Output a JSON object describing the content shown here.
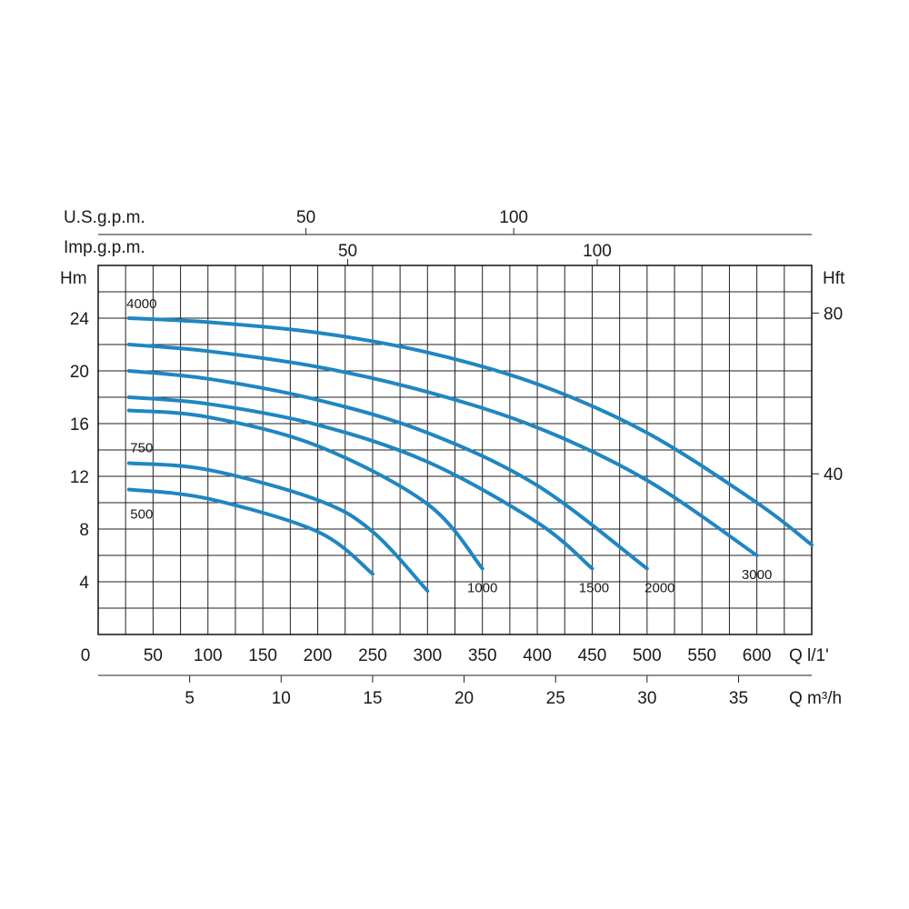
{
  "chart_data": {
    "type": "line",
    "curve_color": "#1f86c2",
    "x_axis": {
      "label": "Q l/1'",
      "ticks": [
        0,
        50,
        100,
        150,
        200,
        250,
        300,
        350,
        400,
        450,
        500,
        550,
        600
      ],
      "range": [
        0,
        650
      ]
    },
    "y_axis": {
      "label": "Hm",
      "ticks": [
        4,
        8,
        12,
        16,
        20,
        24
      ],
      "range": [
        0,
        28
      ]
    },
    "x_axis_m3h": {
      "label": "Q m³/h",
      "ticks": [
        5,
        10,
        15,
        20,
        25,
        30,
        35
      ]
    },
    "y_axis_ft": {
      "label": "Hft",
      "ticks": [
        40,
        80
      ]
    },
    "top_axis_us": {
      "label": "U.S.g.p.m.",
      "ticks": [
        50,
        100
      ]
    },
    "top_axis_imp": {
      "label": "Imp.g.p.m.",
      "ticks": [
        50,
        100
      ]
    },
    "series": [
      {
        "name": "4000",
        "label_anchor": "start",
        "x": [
          28,
          100,
          200,
          300,
          400,
          500,
          600,
          650
        ],
        "y": [
          24,
          23.7,
          22.9,
          21.4,
          19.0,
          15.3,
          10.0,
          6.8
        ]
      },
      {
        "name": "3000",
        "label_anchor": "end",
        "x": [
          28,
          100,
          200,
          300,
          400,
          500,
          600
        ],
        "y": [
          22,
          21.5,
          20.3,
          18.4,
          15.7,
          11.7,
          6.0
        ]
      },
      {
        "name": "2000",
        "label_anchor": "end",
        "x": [
          28,
          100,
          200,
          300,
          400,
          500
        ],
        "y": [
          20,
          19.4,
          17.8,
          15.3,
          11.3,
          5.0
        ]
      },
      {
        "name": "1500",
        "label_anchor": "end",
        "x": [
          28,
          100,
          200,
          300,
          400,
          450
        ],
        "y": [
          18,
          17.5,
          15.9,
          13.1,
          8.5,
          5.0
        ]
      },
      {
        "name": "1000",
        "label_anchor": "end",
        "x": [
          28,
          100,
          200,
          300,
          350
        ],
        "y": [
          17,
          16.5,
          14.3,
          9.9,
          5.0
        ]
      },
      {
        "name": "750",
        "label_anchor": "start",
        "x": [
          28,
          100,
          200,
          250,
          300
        ],
        "y": [
          13,
          12.5,
          10.2,
          7.8,
          3.3
        ]
      },
      {
        "name": "500",
        "label_anchor": "start",
        "x": [
          28,
          100,
          200,
          250
        ],
        "y": [
          11,
          10.3,
          7.8,
          4.6
        ]
      }
    ]
  }
}
